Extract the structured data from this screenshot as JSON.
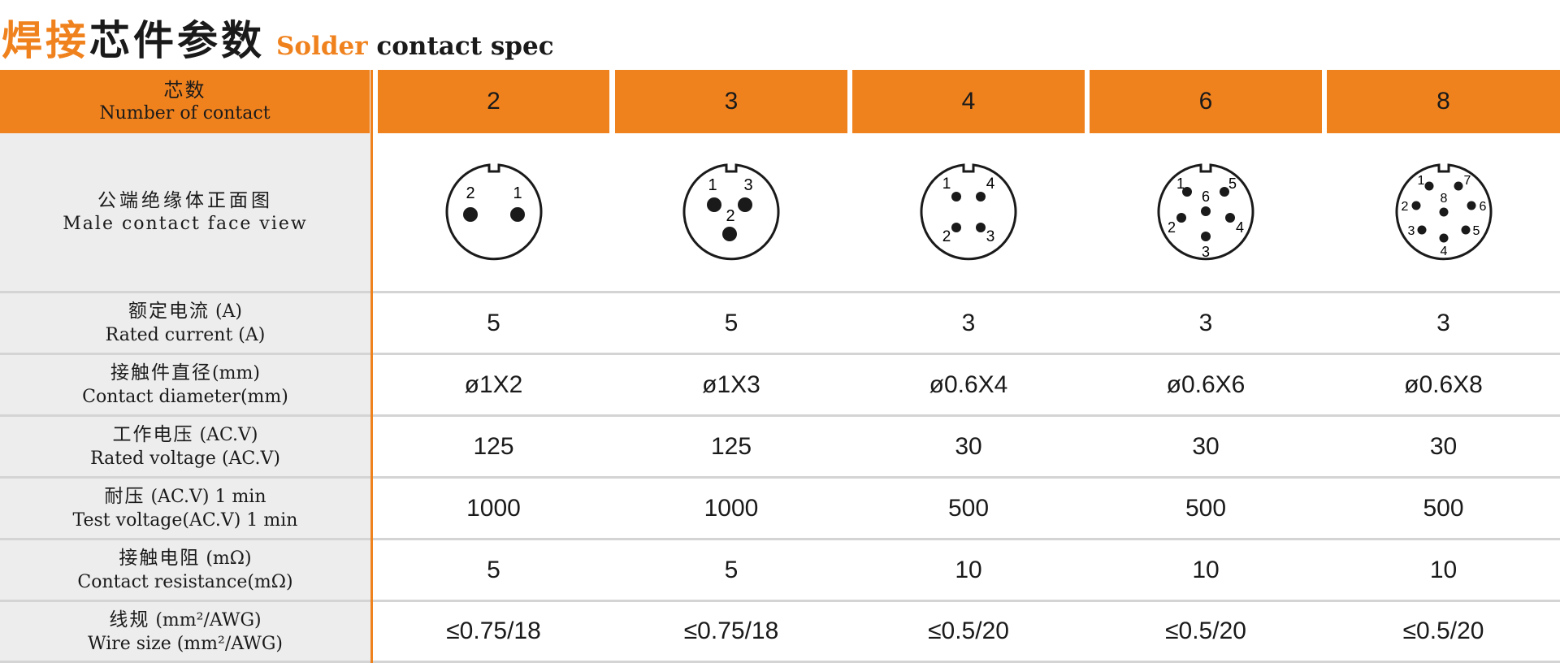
{
  "title": {
    "cn_orange": "焊接",
    "cn_black": "芯件参数",
    "en_orange": "Solder",
    "en_black": "contact spec"
  },
  "colors": {
    "accent": "#f0821e",
    "label_bg": "#ededed",
    "divider": "#d4d4d4"
  },
  "header": {
    "cn": "芯数",
    "en": "Number of contact",
    "columns": [
      "2",
      "3",
      "4",
      "6",
      "8"
    ]
  },
  "face_view": {
    "cn": "公端绝缘体正面图",
    "en": "Male contact face view",
    "diagrams": [
      {
        "contacts": 2,
        "labels": [
          "2",
          "1"
        ]
      },
      {
        "contacts": 3,
        "labels": [
          "1",
          "3",
          "2"
        ]
      },
      {
        "contacts": 4,
        "labels": [
          "1",
          "4",
          "2",
          "3"
        ]
      },
      {
        "contacts": 6,
        "labels": [
          "1",
          "6",
          "5",
          "2",
          "4",
          "3"
        ]
      },
      {
        "contacts": 8,
        "labels": [
          "1",
          "7",
          "2",
          "8",
          "6",
          "3",
          "5",
          "4"
        ]
      }
    ]
  },
  "rows": [
    {
      "cn": "额定电流",
      "cn_unit": " (A)",
      "en": "Rated current (A)",
      "values": [
        "5",
        "5",
        "3",
        "3",
        "3"
      ]
    },
    {
      "cn": "接触件直径",
      "cn_unit": "(mm)",
      "en": "Contact diameter(mm)",
      "values": [
        "ø1X2",
        "ø1X3",
        "ø0.6X4",
        "ø0.6X6",
        "ø0.6X8"
      ]
    },
    {
      "cn": "工作电压",
      "cn_unit": " (AC.V)",
      "en": "Rated voltage (AC.V)",
      "values": [
        "125",
        "125",
        "30",
        "30",
        "30"
      ]
    },
    {
      "cn": "耐压",
      "cn_unit": " (AC.V) 1 min",
      "en": "Test voltage(AC.V) 1 min",
      "values": [
        "1000",
        "1000",
        "500",
        "500",
        "500"
      ]
    },
    {
      "cn": "接触电阻",
      "cn_unit": " (mΩ)",
      "en": "Contact resistance(mΩ)",
      "values": [
        "5",
        "5",
        "10",
        "10",
        "10"
      ]
    },
    {
      "cn": "线规",
      "cn_unit": " (mm²/AWG)",
      "en": "Wire size (mm²/AWG)",
      "values": [
        "≤0.75/18",
        "≤0.75/18",
        "≤0.5/20",
        "≤0.5/20",
        "≤0.5/20"
      ]
    }
  ]
}
